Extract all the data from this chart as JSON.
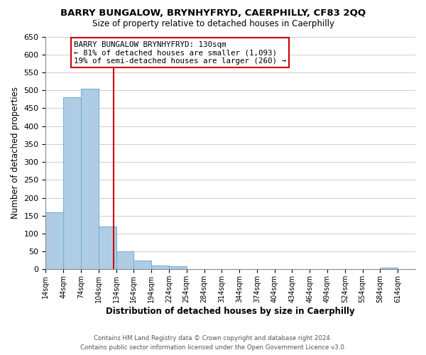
{
  "title": "BARRY BUNGALOW, BRYNHYFRYD, CAERPHILLY, CF83 2QQ",
  "subtitle": "Size of property relative to detached houses in Caerphilly",
  "xlabel": "Distribution of detached houses by size in Caerphilly",
  "ylabel": "Number of detached properties",
  "bar_edges": [
    14,
    44,
    74,
    104,
    134,
    164,
    194,
    224,
    254,
    284,
    314,
    344,
    374,
    404,
    434,
    464,
    494,
    524,
    554,
    584,
    614
  ],
  "bar_heights": [
    160,
    480,
    505,
    120,
    50,
    25,
    10,
    8,
    0,
    0,
    0,
    0,
    0,
    0,
    0,
    0,
    0,
    0,
    0,
    5
  ],
  "bar_color": "#aecde5",
  "bar_edgecolor": "#aecde5",
  "marker_x": 130,
  "marker_color": "#cc0000",
  "ylim": [
    0,
    650
  ],
  "xlim": [
    14,
    644
  ],
  "yticks": [
    0,
    50,
    100,
    150,
    200,
    250,
    300,
    350,
    400,
    450,
    500,
    550,
    600,
    650
  ],
  "tick_labels": [
    "14sqm",
    "44sqm",
    "74sqm",
    "104sqm",
    "134sqm",
    "164sqm",
    "194sqm",
    "224sqm",
    "254sqm",
    "284sqm",
    "314sqm",
    "344sqm",
    "374sqm",
    "404sqm",
    "434sqm",
    "464sqm",
    "494sqm",
    "524sqm",
    "554sqm",
    "584sqm",
    "614sqm"
  ],
  "legend_title": "BARRY BUNGALOW BRYNHYFRYD: 130sqm",
  "legend_line1": "← 81% of detached houses are smaller (1,093)",
  "legend_line2": "19% of semi-detached houses are larger (260) →",
  "footer1": "Contains HM Land Registry data © Crown copyright and database right 2024.",
  "footer2": "Contains public sector information licensed under the Open Government Licence v3.0.",
  "background_color": "#ffffff",
  "grid_color": "#cccccc"
}
